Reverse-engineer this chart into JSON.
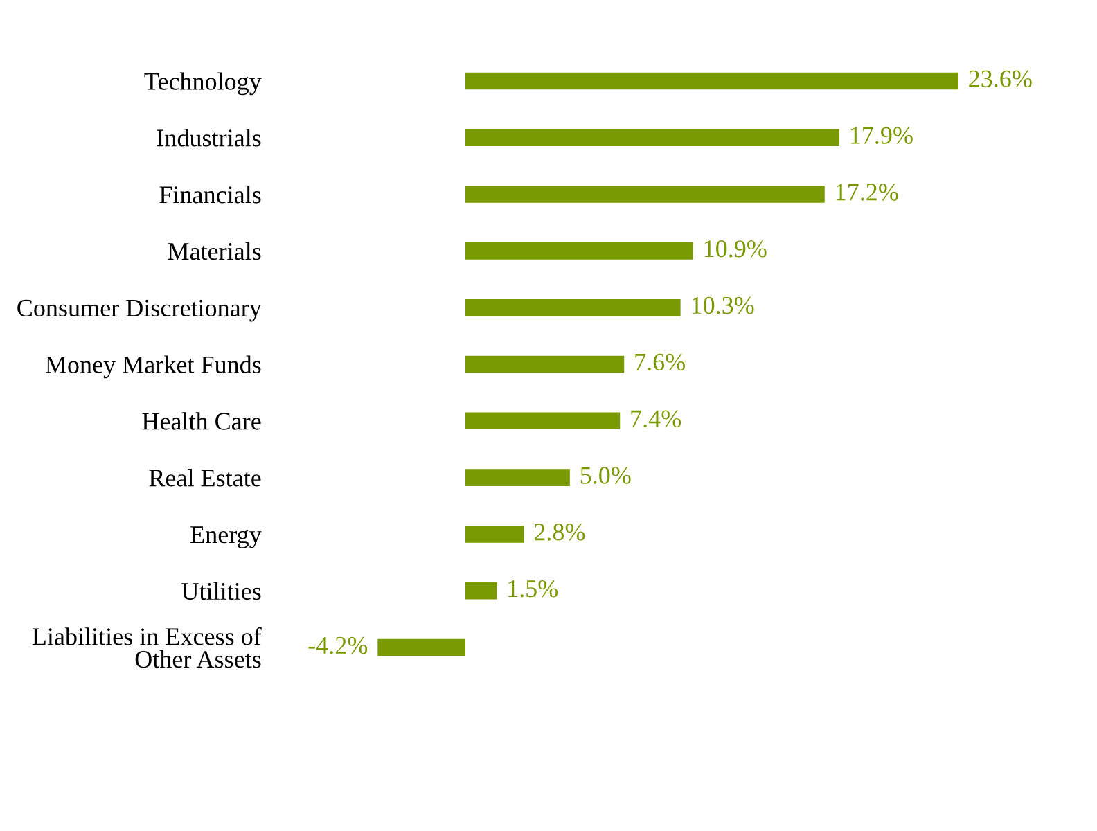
{
  "chart_data": {
    "type": "bar",
    "orientation": "horizontal",
    "categories": [
      "Technology",
      "Industrials",
      "Financials",
      "Materials",
      "Consumer Discretionary",
      "Money Market Funds",
      "Health Care",
      "Real Estate",
      "Energy",
      "Utilities",
      "Liabilities in Excess of\nOther Assets"
    ],
    "values": [
      23.6,
      17.9,
      17.2,
      10.9,
      10.3,
      7.6,
      7.4,
      5.0,
      2.8,
      1.5,
      -4.2
    ],
    "value_labels": [
      "23.6%",
      "17.9%",
      "17.2%",
      "10.9%",
      "10.3%",
      "7.6%",
      "7.4%",
      "5.0%",
      "2.8%",
      "1.5%",
      "-4.2%"
    ],
    "color": "#7a9a01",
    "grid": false,
    "legend": false
  }
}
